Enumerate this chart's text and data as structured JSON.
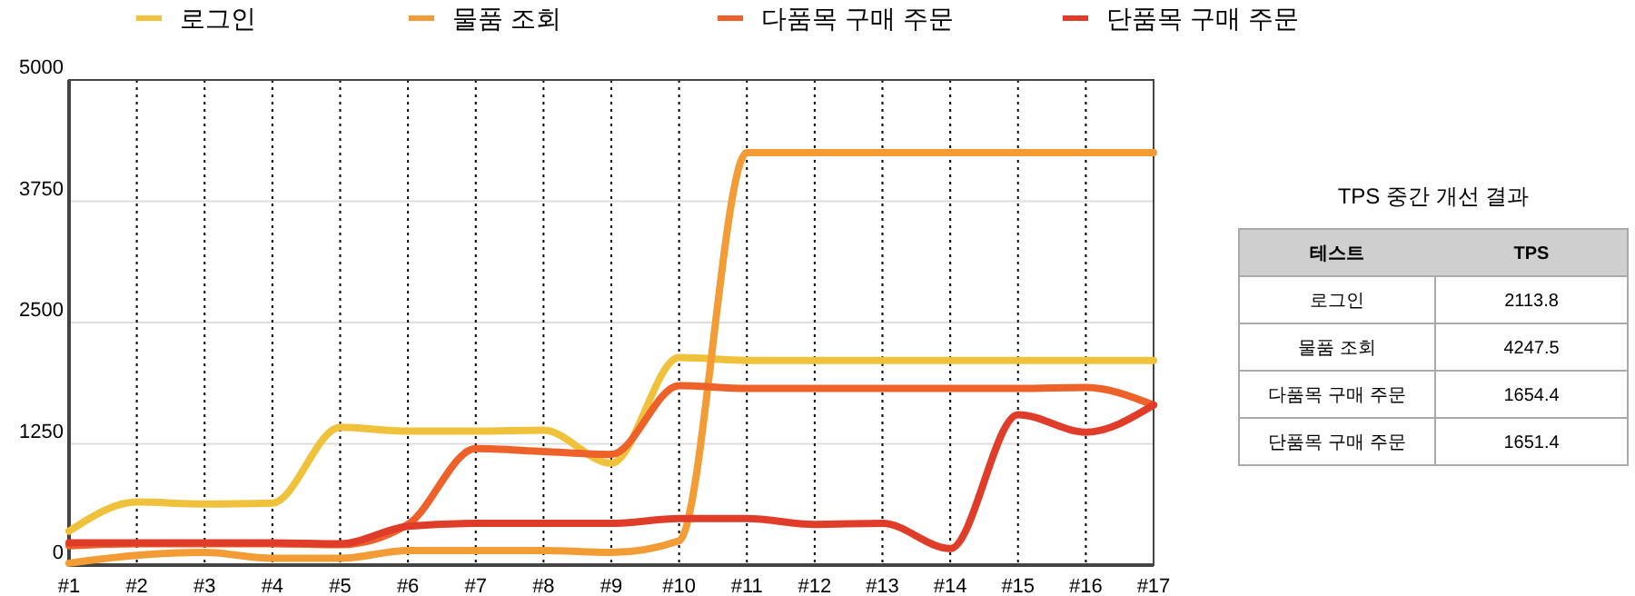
{
  "chart_data": [
    {
      "type": "line",
      "categories": [
        "#1",
        "#2",
        "#3",
        "#4",
        "#5",
        "#6",
        "#7",
        "#8",
        "#9",
        "#10",
        "#11",
        "#12",
        "#13",
        "#14",
        "#15",
        "#16",
        "#17"
      ],
      "ylim": [
        0,
        5000
      ],
      "yticks": [
        0,
        1250,
        2500,
        3750,
        5000
      ],
      "grid": true,
      "legend": "top",
      "line_style": "solid",
      "marker": "none",
      "series": [
        {
          "name": "로그인",
          "color": "#f0c23b",
          "values": [
            350,
            650,
            630,
            640,
            1420,
            1380,
            1380,
            1390,
            1050,
            2140,
            2110,
            2110,
            2110,
            2110,
            2110,
            2110,
            2110
          ]
        },
        {
          "name": "물품 조회",
          "color": "#f39c36",
          "values": [
            20,
            100,
            130,
            70,
            70,
            150,
            150,
            150,
            130,
            250,
            4250,
            4250,
            4250,
            4250,
            4250,
            4250,
            4250
          ]
        },
        {
          "name": "다품목 구매 주문",
          "color": "#ee6229",
          "values": [
            200,
            220,
            220,
            220,
            210,
            420,
            1200,
            1170,
            1140,
            1850,
            1820,
            1820,
            1820,
            1820,
            1820,
            1830,
            1650
          ]
        },
        {
          "name": "단품목 구매 주문",
          "color": "#e03c2a",
          "values": [
            230,
            230,
            230,
            230,
            220,
            400,
            430,
            430,
            430,
            480,
            480,
            420,
            430,
            170,
            1550,
            1370,
            1650
          ]
        }
      ]
    },
    {
      "type": "other",
      "title": "TPS 중간 개선 결과",
      "xlabel": "테스트",
      "ylabel": "TPS",
      "categories": [
        "로그인",
        "물품 조회",
        "다품목 구매 주문",
        "단품목 구매 주문"
      ],
      "values": [
        2113.8,
        4247.5,
        1654.4,
        1651.4
      ],
      "data_labels": true
    }
  ]
}
